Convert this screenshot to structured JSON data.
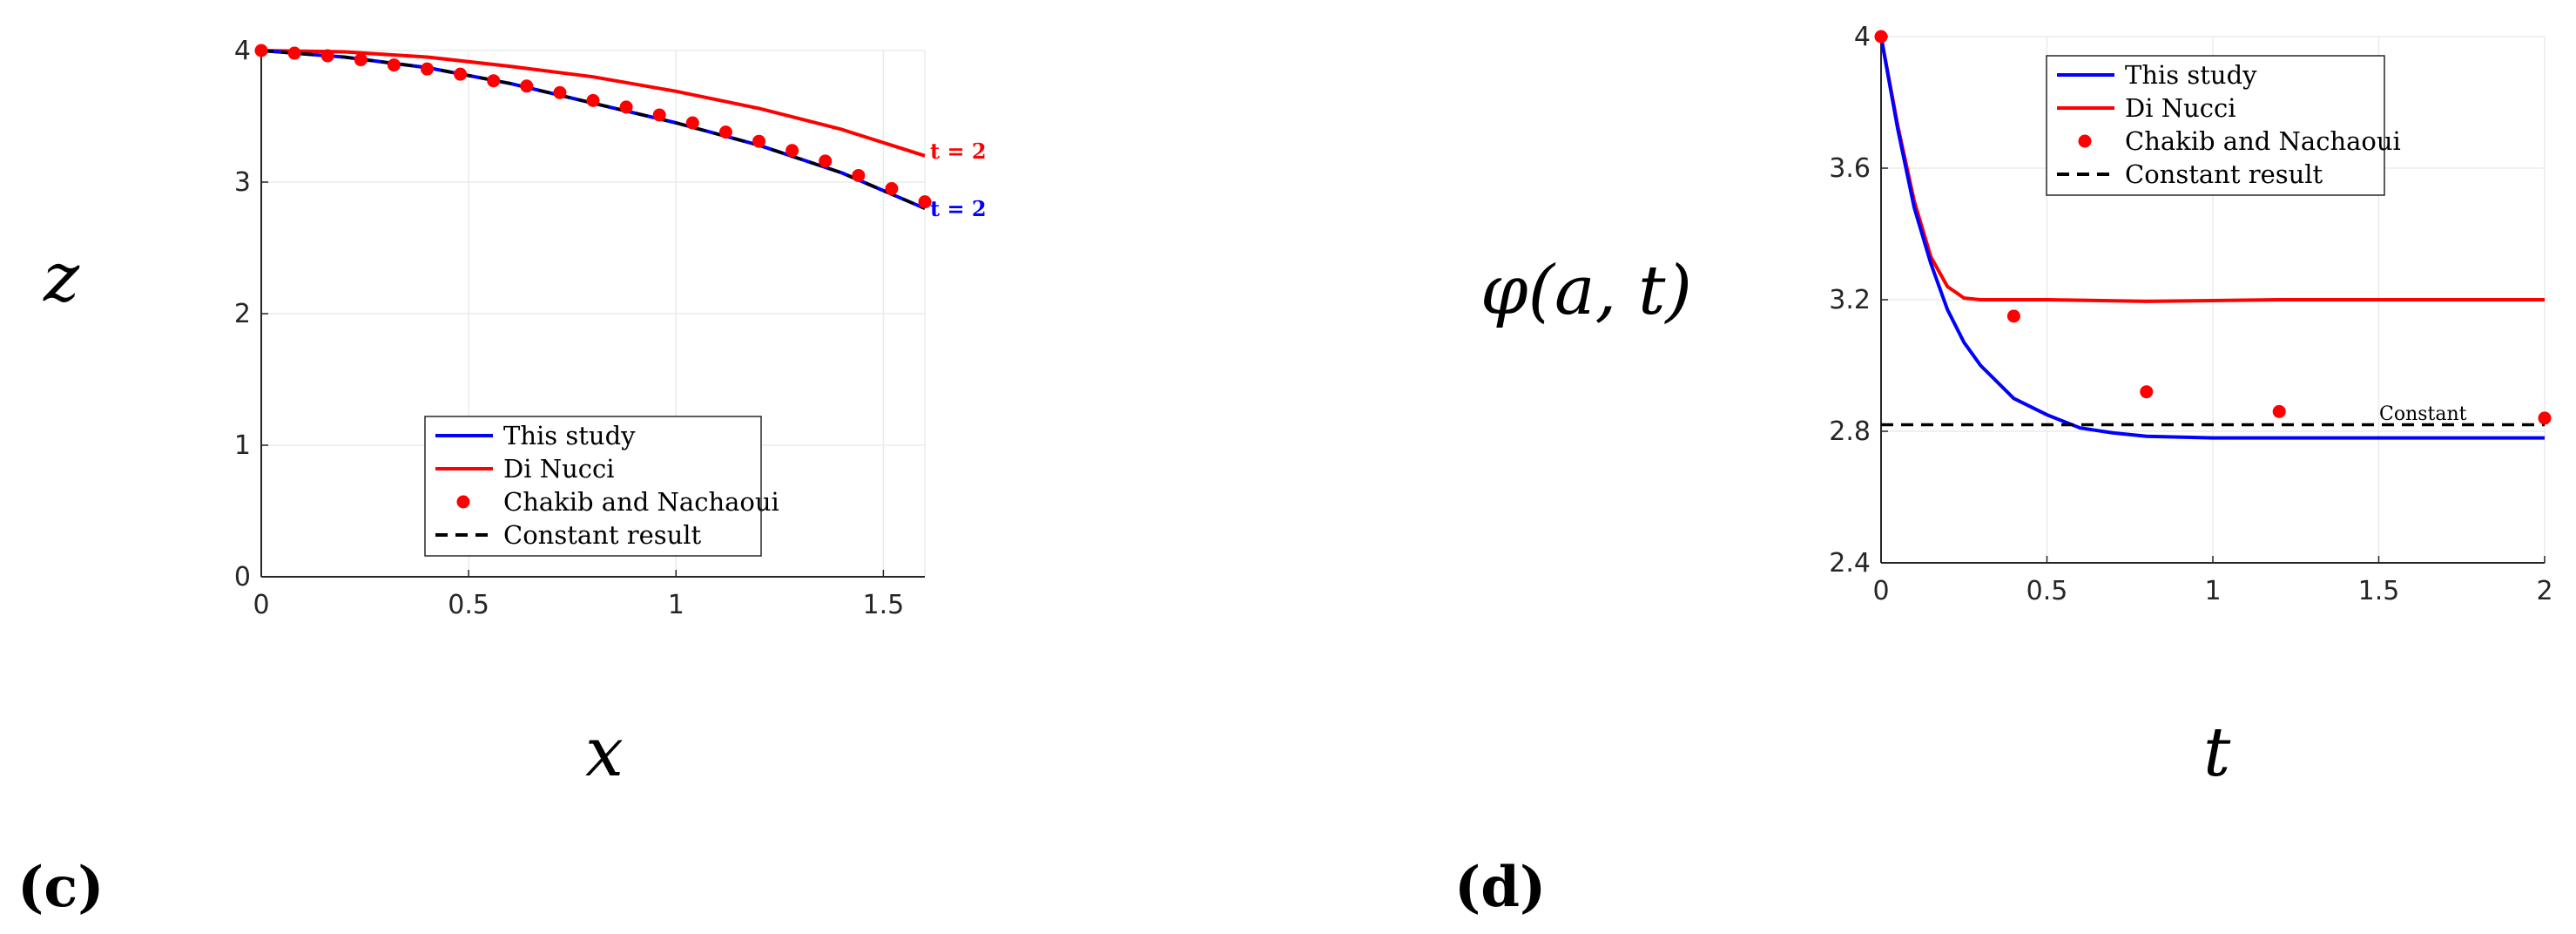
{
  "chart_data": [
    {
      "panel": "(c)",
      "type": "line",
      "xlabel": "x",
      "ylabel": "z",
      "xlim": [
        0,
        1.6
      ],
      "ylim": [
        0,
        4
      ],
      "xticks": [
        "0",
        "0.5",
        "1",
        "1.5"
      ],
      "yticks": [
        "0",
        "1",
        "2",
        "3",
        "4"
      ],
      "grid": true,
      "legend_placement": "bottom-center",
      "series": [
        {
          "name": "This study",
          "style": "solid",
          "color": "#0000ff",
          "x": [
            0,
            0.2,
            0.4,
            0.6,
            0.8,
            1.0,
            1.2,
            1.4,
            1.6
          ],
          "y": [
            4.0,
            3.95,
            3.87,
            3.75,
            3.6,
            3.45,
            3.28,
            3.07,
            2.8
          ]
        },
        {
          "name": "Di Nucci",
          "style": "solid",
          "color": "#ff0000",
          "x": [
            0,
            0.2,
            0.4,
            0.6,
            0.8,
            1.0,
            1.2,
            1.4,
            1.6
          ],
          "y": [
            4.0,
            3.99,
            3.95,
            3.88,
            3.8,
            3.69,
            3.56,
            3.4,
            3.2
          ]
        },
        {
          "name": "Chakib and Nachaoui",
          "style": "markers",
          "color": "#ff0000",
          "x": [
            0,
            0.08,
            0.16,
            0.24,
            0.32,
            0.4,
            0.48,
            0.56,
            0.64,
            0.72,
            0.8,
            0.88,
            0.96,
            1.04,
            1.12,
            1.2,
            1.28,
            1.36,
            1.44,
            1.52,
            1.6
          ],
          "y": [
            4.0,
            3.98,
            3.96,
            3.93,
            3.89,
            3.86,
            3.82,
            3.77,
            3.73,
            3.68,
            3.62,
            3.57,
            3.51,
            3.45,
            3.38,
            3.31,
            3.24,
            3.16,
            3.05,
            2.95,
            2.85
          ]
        },
        {
          "name": "Constant result",
          "style": "dashed",
          "color": "#000000",
          "x": [
            0,
            0.2,
            0.4,
            0.6,
            0.8,
            1.0,
            1.2,
            1.4,
            1.6
          ],
          "y": [
            4.0,
            3.95,
            3.87,
            3.75,
            3.6,
            3.45,
            3.28,
            3.07,
            2.8
          ]
        }
      ],
      "annotations": [
        {
          "text": "t = 2",
          "color": "#ff0000"
        },
        {
          "text": "t = 2",
          "color": "#0000ff"
        }
      ]
    },
    {
      "panel": "(d)",
      "type": "line",
      "xlabel": "t",
      "ylabel": "φ(a, t)",
      "xlim": [
        0,
        2
      ],
      "ylim": [
        2.4,
        4
      ],
      "xticks": [
        "0",
        "0.5",
        "1",
        "1.5",
        "2"
      ],
      "yticks": [
        "2.4",
        "2.8",
        "3.2",
        "3.6",
        "4"
      ],
      "grid": true,
      "legend_placement": "top-center",
      "series": [
        {
          "name": "This study",
          "style": "solid",
          "color": "#0000ff",
          "x": [
            0,
            0.05,
            0.1,
            0.15,
            0.2,
            0.25,
            0.3,
            0.4,
            0.5,
            0.6,
            0.7,
            0.8,
            1.0,
            1.2,
            1.5,
            2.0
          ],
          "y": [
            4.0,
            3.72,
            3.48,
            3.31,
            3.17,
            3.07,
            3.0,
            2.9,
            2.85,
            2.81,
            2.795,
            2.785,
            2.78,
            2.78,
            2.78,
            2.78
          ]
        },
        {
          "name": "Di Nucci",
          "style": "solid",
          "color": "#ff0000",
          "x": [
            0,
            0.05,
            0.1,
            0.15,
            0.2,
            0.25,
            0.3,
            0.5,
            0.8,
            1.2,
            1.6,
            2.0
          ],
          "y": [
            4.0,
            3.73,
            3.5,
            3.33,
            3.24,
            3.205,
            3.2,
            3.2,
            3.195,
            3.2,
            3.2,
            3.2
          ]
        },
        {
          "name": "Chakib and Nachaoui",
          "style": "markers",
          "color": "#ff0000",
          "x": [
            0,
            0.4,
            0.8,
            1.2,
            2.0
          ],
          "y": [
            4.0,
            3.15,
            2.92,
            2.86,
            2.84
          ]
        },
        {
          "name": "Constant result",
          "style": "dashed",
          "color": "#000000",
          "x": [
            0,
            2
          ],
          "y": [
            2.82,
            2.82
          ]
        }
      ],
      "annotations": [
        {
          "text": "Constant",
          "color": "#000000"
        }
      ]
    }
  ],
  "labels": {
    "panel_c": "(c)",
    "panel_d": "(d)",
    "c_ylabel": "z",
    "c_xlabel": "x",
    "d_ylabel": "φ(a, t)",
    "d_xlabel": "t"
  }
}
